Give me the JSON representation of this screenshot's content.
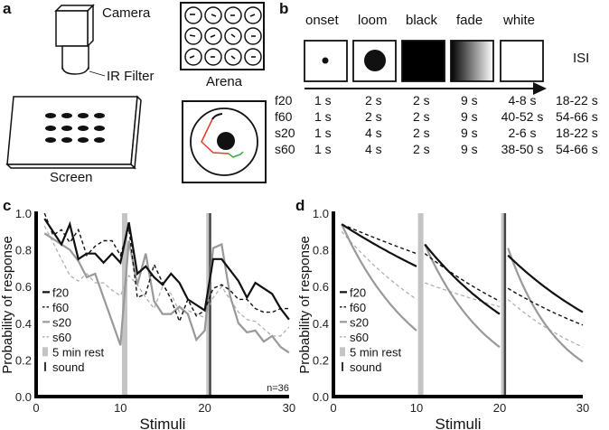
{
  "panel_a": {
    "letter": "a",
    "camera_label": "Camera",
    "filter_label": "IR Filter",
    "screen_label": "Screen",
    "arena_label": "Arena"
  },
  "panel_b": {
    "letter": "b",
    "phases": [
      "onset",
      "loom",
      "black",
      "fade",
      "white"
    ],
    "isi_label": "ISI",
    "rows": [
      {
        "name": "f20",
        "values": [
          "1 s",
          "2 s",
          "2 s",
          "9 s",
          "4-8 s",
          "18-22 s"
        ]
      },
      {
        "name": "f60",
        "values": [
          "1 s",
          "2 s",
          "2 s",
          "9 s",
          "40-52 s",
          "54-66 s"
        ]
      },
      {
        "name": "s20",
        "values": [
          "1 s",
          "4 s",
          "2 s",
          "9 s",
          "2-6 s",
          "18-22 s"
        ]
      },
      {
        "name": "s60",
        "values": [
          "1 s",
          "4 s",
          "2 s",
          "9 s",
          "38-50 s",
          "54-66 s"
        ]
      }
    ]
  },
  "legend": [
    {
      "label": "f20",
      "style": "solid-black"
    },
    {
      "label": "f60",
      "style": "dashed-black"
    },
    {
      "label": "s20",
      "style": "solid-grey"
    },
    {
      "label": "s60",
      "style": "dashed-grey"
    },
    {
      "label": "5 min rest",
      "style": "grey-bar"
    },
    {
      "label": "sound",
      "style": "dark-bar"
    }
  ],
  "colors": {
    "black": "#111111",
    "grey": "#999999",
    "light_grey": "#bbbbbb",
    "rest_bar": "#c4c4c4",
    "sound_bar": "#444444",
    "trace_red": "#e8392b",
    "trace_green": "#3aa83a"
  },
  "chart_data": [
    {
      "panel": "c",
      "type": "line",
      "xlabel": "Stimuli",
      "ylabel": "Probability of response",
      "xlim": [
        0,
        30
      ],
      "ylim": [
        0,
        1.0
      ],
      "xticks": [
        0,
        10,
        20,
        30
      ],
      "yticks": [
        "0.0",
        "0.2",
        "0.4",
        "0.6",
        "0.8",
        "1.0"
      ],
      "annotation": "n=36",
      "rest_at": 10.5,
      "sound_at": 20.5,
      "x": [
        1,
        2,
        3,
        4,
        5,
        6,
        7,
        8,
        9,
        10,
        11,
        12,
        13,
        14,
        15,
        16,
        17,
        18,
        19,
        20,
        21,
        22,
        23,
        24,
        25,
        26,
        27,
        28,
        29,
        30
      ],
      "series": [
        {
          "name": "f20",
          "values": [
            0.97,
            0.9,
            0.83,
            0.94,
            0.75,
            0.78,
            0.78,
            0.73,
            0.78,
            0.73,
            0.95,
            0.67,
            0.71,
            0.65,
            0.61,
            0.67,
            0.62,
            0.53,
            0.5,
            0.47,
            0.75,
            0.75,
            0.69,
            0.63,
            0.54,
            0.62,
            0.59,
            0.56,
            0.48,
            0.42
          ]
        },
        {
          "name": "f60",
          "values": [
            1.0,
            0.88,
            0.91,
            0.84,
            0.91,
            0.77,
            0.82,
            0.85,
            0.85,
            0.77,
            0.92,
            0.54,
            0.56,
            0.72,
            0.62,
            0.53,
            0.41,
            0.53,
            0.44,
            0.47,
            0.59,
            0.61,
            0.58,
            0.53,
            0.53,
            0.48,
            0.46,
            0.46,
            0.48,
            0.48
          ]
        },
        {
          "name": "s20",
          "values": [
            0.89,
            0.86,
            0.83,
            0.8,
            0.74,
            0.65,
            0.67,
            0.54,
            0.41,
            0.28,
            0.85,
            0.61,
            0.78,
            0.52,
            0.45,
            0.45,
            0.49,
            0.45,
            0.31,
            0.36,
            0.81,
            0.83,
            0.55,
            0.4,
            0.35,
            0.36,
            0.3,
            0.33,
            0.27,
            0.24
          ]
        },
        {
          "name": "s60",
          "values": [
            0.93,
            0.84,
            0.75,
            0.66,
            0.63,
            0.67,
            0.62,
            0.62,
            0.58,
            0.55,
            0.66,
            0.61,
            0.54,
            0.48,
            0.6,
            0.56,
            0.46,
            0.47,
            0.45,
            0.43,
            0.54,
            0.6,
            0.53,
            0.46,
            0.42,
            0.41,
            0.37,
            0.33,
            0.33,
            0.38
          ]
        }
      ]
    },
    {
      "panel": "d",
      "type": "line",
      "xlabel": "Stimuli",
      "ylabel": "Probability of response",
      "xlim": [
        0,
        30
      ],
      "ylim": [
        0,
        1.0
      ],
      "xticks": [
        0,
        10,
        20,
        30
      ],
      "yticks": [
        "0.0",
        "0.2",
        "0.4",
        "0.6",
        "0.8",
        "1.0"
      ],
      "rest_at": 10.5,
      "sound_at": 20.5,
      "series": [
        {
          "name": "f20",
          "segments": [
            [
              1,
              0.94,
              10,
              0.71
            ],
            [
              11,
              0.83,
              20,
              0.45
            ],
            [
              21,
              0.77,
              30,
              0.46
            ]
          ]
        },
        {
          "name": "f60",
          "segments": [
            [
              1,
              0.94,
              10,
              0.78
            ],
            [
              11,
              0.78,
              20,
              0.52
            ],
            [
              21,
              0.59,
              30,
              0.39
            ]
          ]
        },
        {
          "name": "s20",
          "segments": [
            [
              1,
              0.94,
              10,
              0.36
            ],
            [
              11,
              0.83,
              20,
              0.27
            ],
            [
              21,
              0.81,
              30,
              0.19
            ]
          ]
        },
        {
          "name": "s60",
          "segments": [
            [
              1,
              0.9,
              10,
              0.53
            ],
            [
              11,
              0.62,
              20,
              0.49
            ],
            [
              21,
              0.53,
              30,
              0.27
            ]
          ]
        }
      ]
    }
  ]
}
